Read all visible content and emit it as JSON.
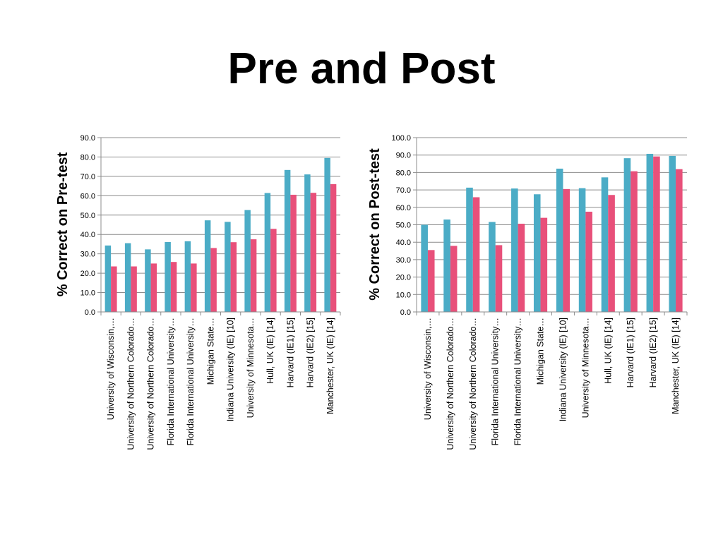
{
  "title": "Pre and Post",
  "colors": {
    "series1": "#4bacc6",
    "series2": "#e8507a",
    "grid": "#8c8c8c"
  },
  "chart_data": [
    {
      "type": "bar",
      "ylabel": "% Correct on Pre-test",
      "xlabel": "",
      "ylim": [
        0,
        90
      ],
      "yticks": [
        "0.0",
        "10.0",
        "20.0",
        "30.0",
        "40.0",
        "50.0",
        "60.0",
        "70.0",
        "80.0",
        "90.0"
      ],
      "grid": true,
      "categories": [
        "University of Wisconsin,…",
        "University of Northern Colorado…",
        "University of Northern Colorado…",
        "Florida International University…",
        "Florida International University…",
        "Michigan State…",
        "Indiana University (IE) [10]",
        "University of          Minnesota…",
        "Hull, UK (IE) [14]",
        "Harvard (IE1) [15]",
        "Harvard (IE2) [15]",
        "Manchester, UK (IE) [14]"
      ],
      "series": [
        {
          "values": [
            34.3,
            35.5,
            32.3,
            36.1,
            36.5,
            47.3,
            46.5,
            52.6,
            61.4,
            73.3,
            71.0,
            79.5
          ]
        },
        {
          "values": [
            23.5,
            23.5,
            25.0,
            25.8,
            25.0,
            33.0,
            36.0,
            37.5,
            42.9,
            60.5,
            61.5,
            66.0
          ]
        }
      ]
    },
    {
      "type": "bar",
      "ylabel": "% Correct on Post-test",
      "xlabel": "",
      "ylim": [
        0,
        100
      ],
      "yticks": [
        "0.0",
        "10.0",
        "20.0",
        "30.0",
        "40.0",
        "50.0",
        "60.0",
        "70.0",
        "80.0",
        "90.0",
        "100.0"
      ],
      "grid": true,
      "categories": [
        "University of Wisconsin,…",
        "University of Northern Colorado…",
        "University of Northern Colorado…",
        "Florida International University…",
        "Florida International University…",
        "Michigan State…",
        "Indiana University (IE) [10]",
        "University of          Minnesota…",
        "Hull, UK (IE) [14]",
        "Harvard (IE1) [15]",
        "Harvard (IE2) [15]",
        "Manchester, UK (IE) [14]"
      ],
      "series": [
        {
          "values": [
            50.0,
            53.0,
            71.3,
            51.6,
            70.8,
            67.5,
            82.2,
            71.0,
            77.2,
            88.2,
            90.7,
            89.5
          ]
        },
        {
          "values": [
            35.5,
            37.9,
            65.8,
            38.3,
            50.6,
            54.0,
            70.5,
            57.5,
            67.1,
            80.7,
            89.2,
            81.9
          ]
        }
      ]
    }
  ]
}
